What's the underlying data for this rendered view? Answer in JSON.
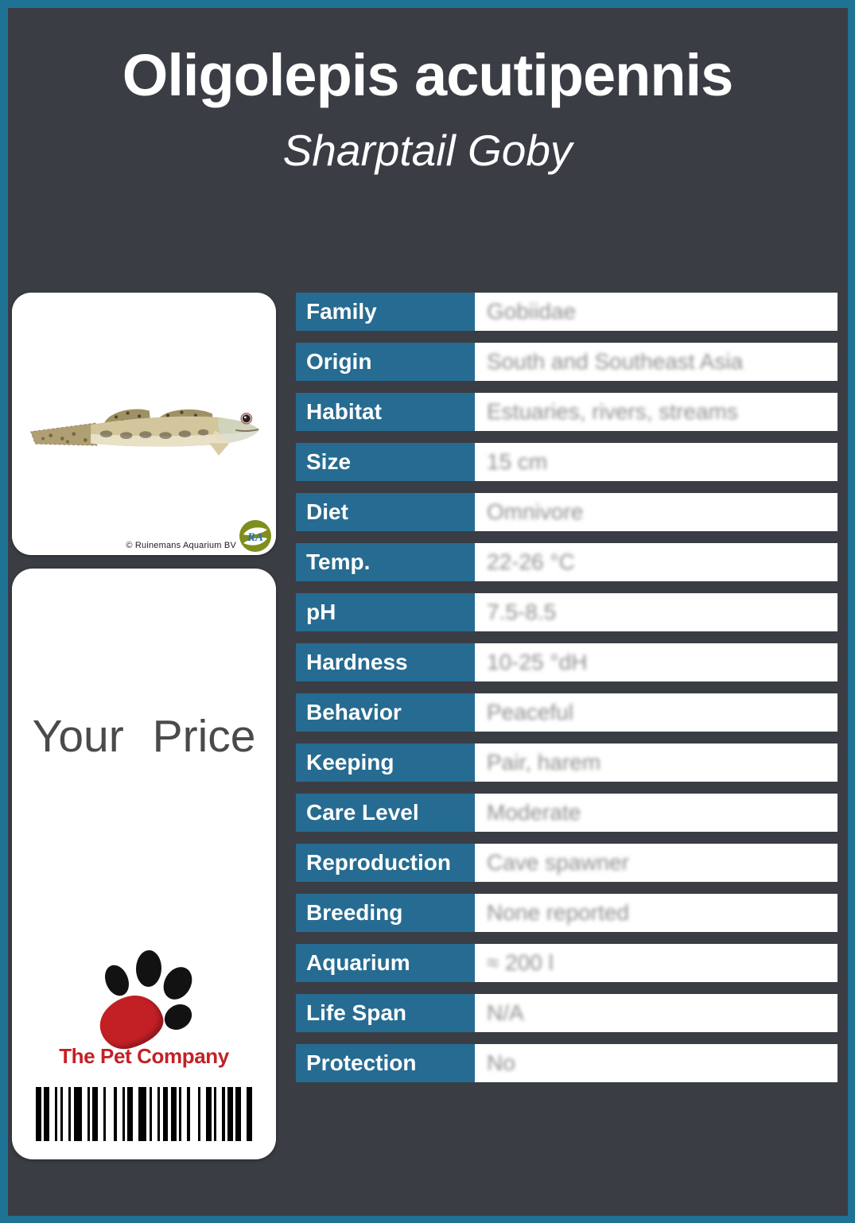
{
  "header": {
    "title": "Oligolepis acutipennis",
    "subtitle": "Sharptail Goby"
  },
  "photo_card": {
    "copyright": "© Ruinemans Aquarium BV",
    "supplier_logo_text": "RA"
  },
  "price_card": {
    "price_label": "Your Price",
    "brand_name": "The Pet Company",
    "barcode_pattern": [
      2,
      1,
      2,
      2,
      1,
      1,
      1,
      2,
      1,
      1,
      3,
      2,
      1,
      1,
      2,
      2,
      1,
      3,
      1,
      2,
      1,
      1,
      2,
      2,
      3,
      1,
      1,
      2,
      1,
      1,
      2,
      1,
      2,
      1,
      1,
      2,
      1,
      3,
      1,
      2,
      2,
      1,
      1,
      2,
      1,
      1,
      2,
      1,
      2,
      2,
      2
    ]
  },
  "spec_table": {
    "rows": [
      {
        "label": "Family",
        "value": "Gobiidae"
      },
      {
        "label": "Origin",
        "value": "South and Southeast Asia"
      },
      {
        "label": "Habitat",
        "value": "Estuaries, rivers, streams"
      },
      {
        "label": "Size",
        "value": "15 cm"
      },
      {
        "label": "Diet",
        "value": "Omnivore"
      },
      {
        "label": "Temp.",
        "value": "22-26 °C"
      },
      {
        "label": "pH",
        "value": "7.5-8.5"
      },
      {
        "label": "Hardness",
        "value": "10-25 °dH"
      },
      {
        "label": "Behavior",
        "value": "Peaceful"
      },
      {
        "label": "Keeping",
        "value": "Pair, harem"
      },
      {
        "label": "Care Level",
        "value": "Moderate"
      },
      {
        "label": "Reproduction",
        "value": "Cave spawner"
      },
      {
        "label": "Breeding",
        "value": "None reported"
      },
      {
        "label": "Aquarium",
        "value": "≈ 200 l"
      },
      {
        "label": "Life Span",
        "value": "N/A"
      },
      {
        "label": "Protection",
        "value": "No"
      }
    ]
  },
  "colors": {
    "frame_border": "#1e7294",
    "background": "#3a3d44",
    "row_label_bg": "#266b91",
    "brand_red": "#c32026",
    "price_text": "#4a4a4d",
    "value_text": "#8f8f8f"
  }
}
